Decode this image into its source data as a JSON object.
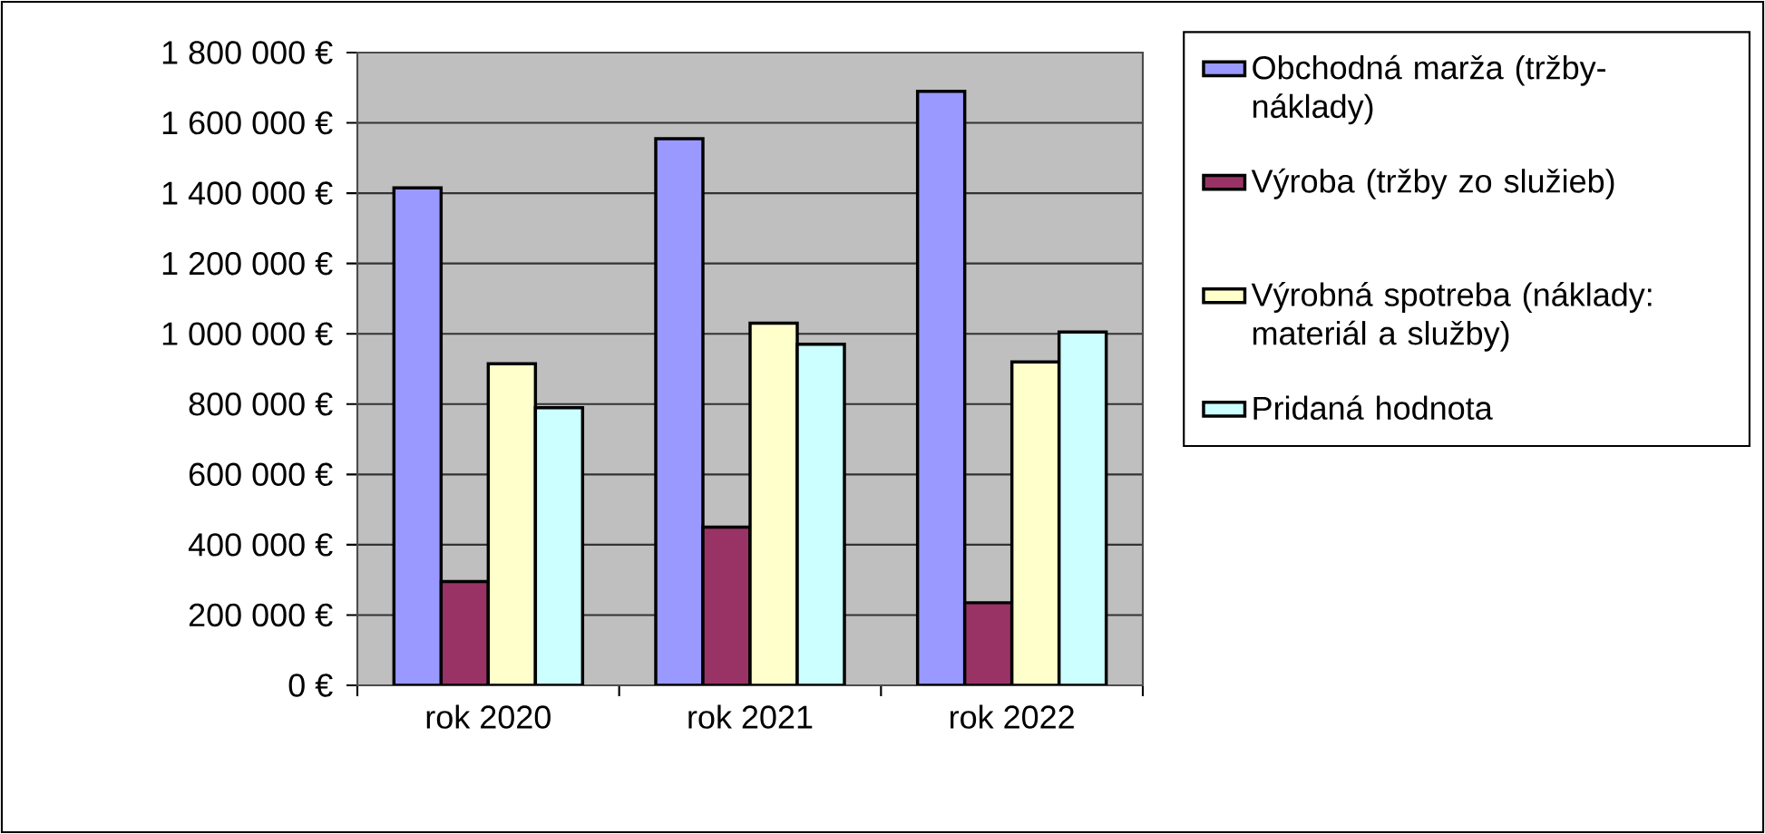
{
  "chart_data": {
    "type": "bar",
    "categories": [
      "rok 2020",
      "rok 2021",
      "rok 2022"
    ],
    "series": [
      {
        "name": "Obchodná marža (tržby-náklady)",
        "color": "#9999ff",
        "values": [
          1415000,
          1555000,
          1690000
        ]
      },
      {
        "name": "Výroba (tržby zo služieb)",
        "color": "#993366",
        "values": [
          295000,
          450000,
          235000
        ]
      },
      {
        "name": "Výrobná spotreba (náklady: materiál a služby)",
        "color": "#ffffcc",
        "values": [
          915000,
          1030000,
          920000
        ]
      },
      {
        "name": "Pridaná hodnota",
        "color": "#ccffff",
        "values": [
          790000,
          970000,
          1005000
        ]
      }
    ],
    "ylim": [
      0,
      1800000
    ],
    "yticks": [
      {
        "value": 0,
        "label": "0 €"
      },
      {
        "value": 200000,
        "label": "200 000 €"
      },
      {
        "value": 400000,
        "label": "400 000 €"
      },
      {
        "value": 600000,
        "label": "600 000 €"
      },
      {
        "value": 800000,
        "label": "800 000 €"
      },
      {
        "value": 1000000,
        "label": "1 000 000 €"
      },
      {
        "value": 1200000,
        "label": "1 200 000 €"
      },
      {
        "value": 1400000,
        "label": "1 400 000 €"
      },
      {
        "value": 1600000,
        "label": "1 600 000 €"
      },
      {
        "value": 1800000,
        "label": "1 800 000 €"
      }
    ],
    "grid": "y",
    "legend": "right"
  }
}
